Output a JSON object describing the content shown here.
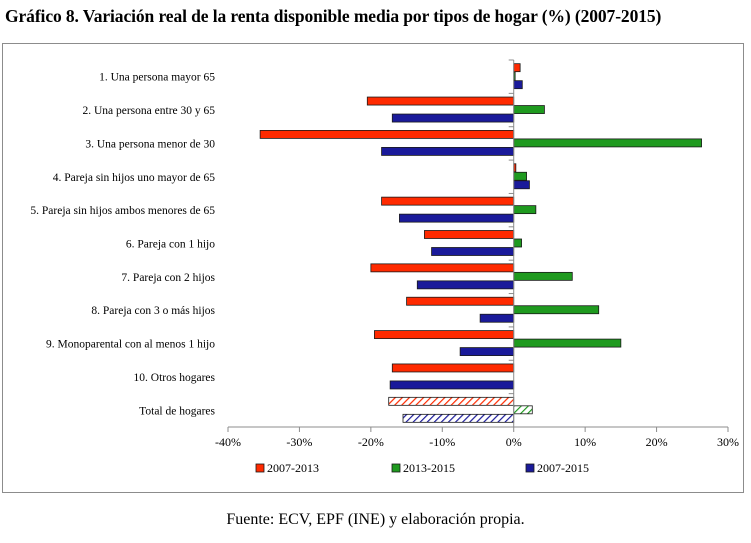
{
  "title": "Gráfico 8. Variación real de la renta disponible media por tipos de hogar (%) (2007-2015)",
  "source": "Fuente: ECV, EPF (INE) y elaboración propia.",
  "chart_data": {
    "type": "bar",
    "orientation": "horizontal",
    "title": "Gráfico 8. Variación real de la renta disponible media por tipos de hogar (%) (2007-2015)",
    "xlabel": "",
    "ylabel": "",
    "xlim": [
      -40,
      30
    ],
    "x_ticks": [
      -40,
      -30,
      -20,
      -10,
      0,
      10,
      20,
      30
    ],
    "x_tick_labels": [
      "-40%",
      "-30%",
      "-20%",
      "-10%",
      "0%",
      "10%",
      "20%",
      "30%"
    ],
    "grid": false,
    "legend_position": "bottom",
    "categories": [
      "1. Una persona mayor 65",
      "2. Una persona entre 30 y 65",
      "3. Una persona menor de 30",
      "4. Pareja sin hijos uno mayor de 65",
      "5. Pareja sin hijos ambos menores de 65",
      "6. Pareja con 1 hijo",
      "7. Pareja con 2 hijos",
      "8. Pareja con 3 o más hijos",
      "9. Monoparental con al menos 1 hijo",
      "10. Otros hogares",
      "Total de hogares"
    ],
    "hatched_categories": [
      "Total de hogares"
    ],
    "series": [
      {
        "name": "2007-2013",
        "color": "#ff2a00",
        "values": [
          0.9,
          -20.5,
          -35.5,
          0.3,
          -18.5,
          -12.5,
          -20,
          -15,
          -19.5,
          -17,
          -17.5
        ]
      },
      {
        "name": "2013-2015",
        "color": "#1f9a1f",
        "values": [
          0.2,
          4.3,
          26.3,
          1.8,
          3.1,
          1.1,
          8.2,
          11.9,
          15,
          0,
          2.6
        ]
      },
      {
        "name": "2007-2015",
        "color": "#1a1a9a",
        "values": [
          1.2,
          -17,
          -18.5,
          2.2,
          -16,
          -11.5,
          -13.5,
          -4.7,
          -7.5,
          -17.3,
          -15.5
        ]
      }
    ]
  }
}
